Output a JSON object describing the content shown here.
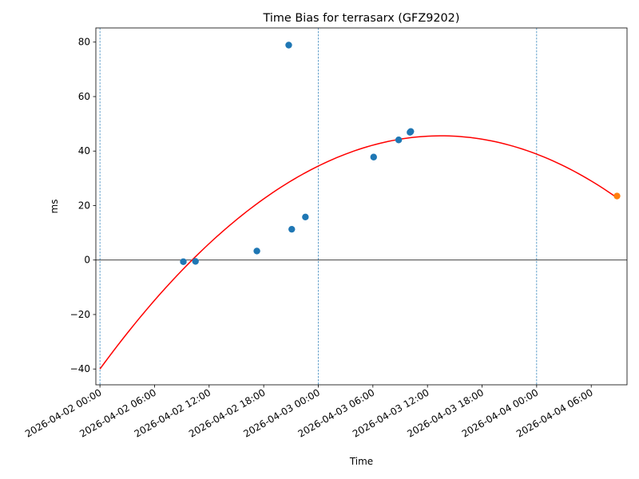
{
  "chart_data": {
    "type": "scatter",
    "title": "Time Bias for terrasarx (GFZ9202)",
    "xlabel": "Time",
    "ylabel": "ms",
    "xlim": [
      "2026-04-01 23:33",
      "2026-04-04 09:56"
    ],
    "ylim": [
      -45.8,
      85.2
    ],
    "x_ticks": [
      "2026-04-02 00:00",
      "2026-04-02 06:00",
      "2026-04-02 12:00",
      "2026-04-02 18:00",
      "2026-04-03 00:00",
      "2026-04-03 06:00",
      "2026-04-03 12:00",
      "2026-04-03 18:00",
      "2026-04-04 00:00",
      "2026-04-04 06:00"
    ],
    "y_ticks": [
      -40,
      -20,
      0,
      20,
      40,
      60,
      80
    ],
    "vertical_lines": [
      "2026-04-02 00:00",
      "2026-04-03 00:00",
      "2026-04-04 00:00"
    ],
    "horizontal_line": 0,
    "grid": false,
    "series": [
      {
        "type": "scatter",
        "color": "#1f77b4",
        "points": [
          {
            "x": "2026-04-02 09:10",
            "y": -0.6
          },
          {
            "x": "2026-04-02 10:30",
            "y": -0.5
          },
          {
            "x": "2026-04-02 17:15",
            "y": 3.3
          },
          {
            "x": "2026-04-02 20:45",
            "y": 78.9
          },
          {
            "x": "2026-04-02 21:05",
            "y": 11.3
          },
          {
            "x": "2026-04-02 22:35",
            "y": 15.8
          },
          {
            "x": "2026-04-03 06:05",
            "y": 37.8
          },
          {
            "x": "2026-04-03 08:50",
            "y": 44.1
          },
          {
            "x": "2026-04-03 10:05",
            "y": 46.9
          },
          {
            "x": "2026-04-03 10:10",
            "y": 47.2
          }
        ]
      },
      {
        "type": "scatter",
        "color": "#ff7f0e",
        "points": [
          {
            "x": "2026-04-04 08:50",
            "y": 23.5
          }
        ]
      },
      {
        "type": "line",
        "color": "#ff0000",
        "fit": "quadratic",
        "x_range": [
          "2026-04-02 00:00",
          "2026-04-04 08:50"
        ],
        "y_start": -40.0,
        "y_end": 23.5,
        "peak": {
          "x": "2026-04-03 13:30",
          "y": 45.6
        }
      }
    ]
  }
}
